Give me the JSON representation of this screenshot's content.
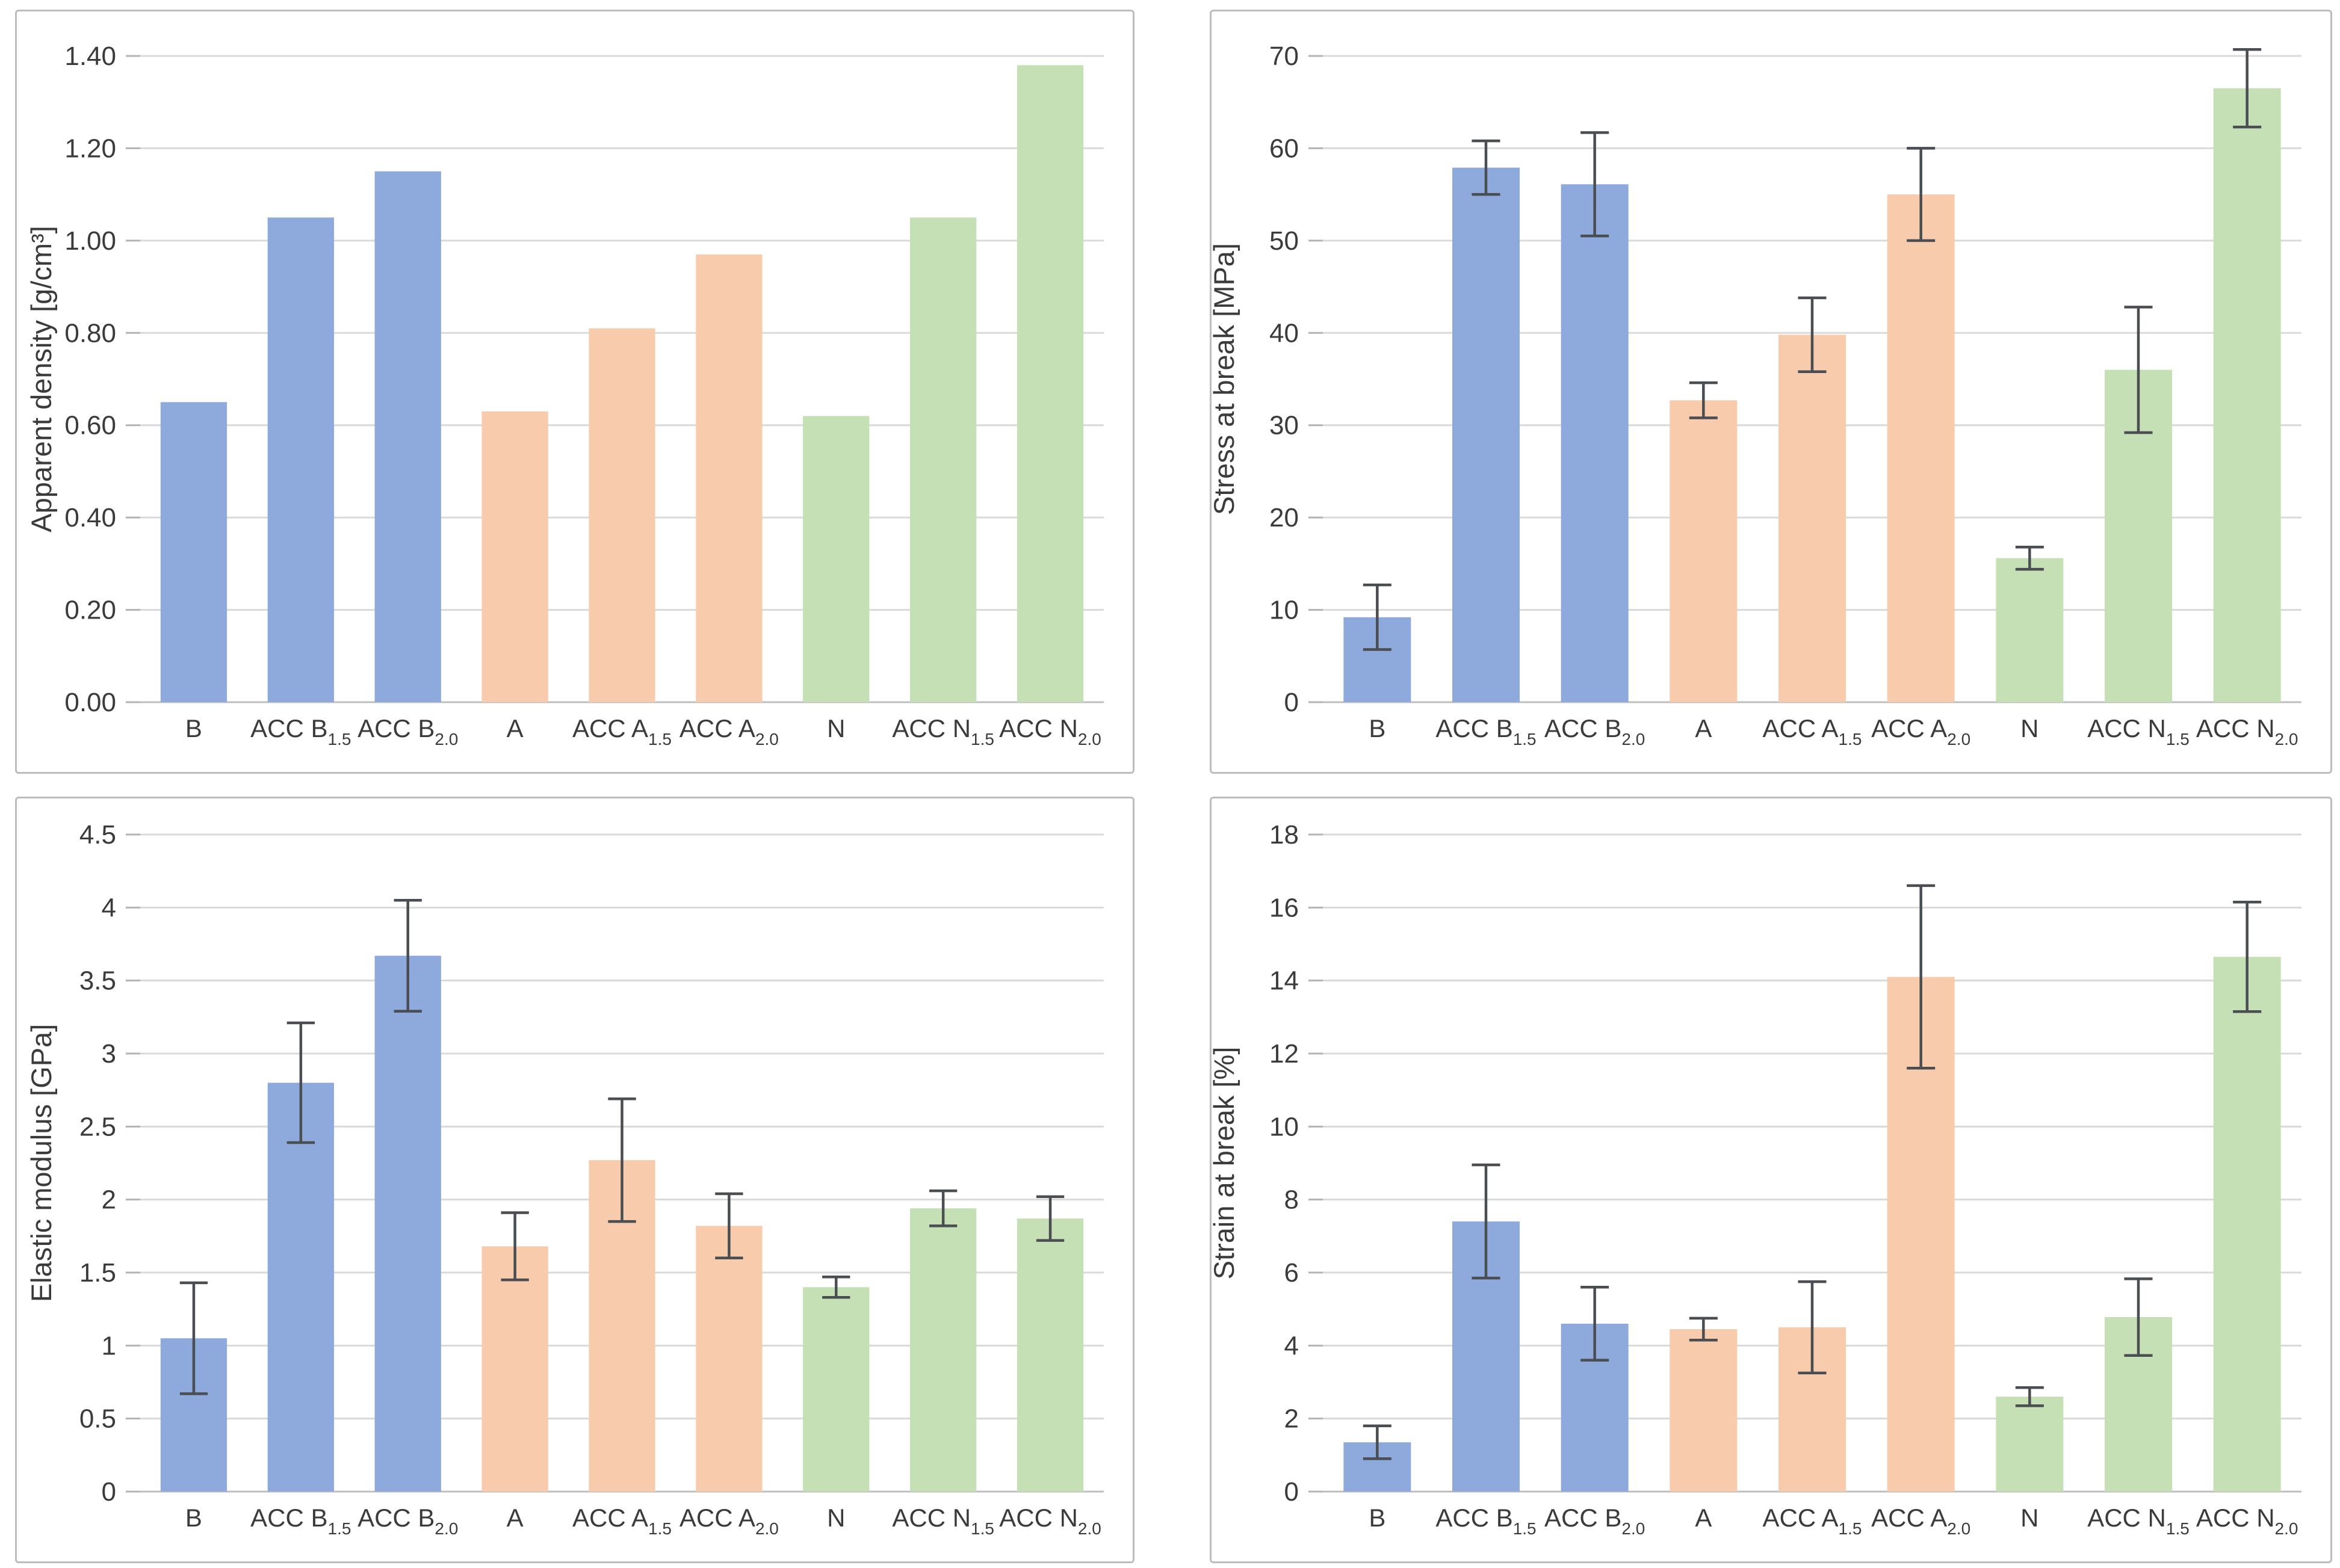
{
  "figure": {
    "description": "Four bar charts of material properties for B, A and N sample groups with ACC treatments",
    "colors": {
      "blue": "#8ea9db",
      "orange": "#f8cbad",
      "green": "#c5e0b4",
      "error_bar": "#4a4d52",
      "gridline": "#dadada",
      "axis_line": "#bfbfbf",
      "tick_mark": "#b3b3b3",
      "text": "#3b3b3b",
      "panel_border": "#bdbdbd"
    }
  },
  "chart_data": [
    {
      "type": "bar",
      "id": "apparent-density",
      "title": "",
      "xlabel": "",
      "ylabel": "Apparent density [g/cm³]",
      "ylim": [
        0,
        1.4
      ],
      "ytick_step": 0.2,
      "ytick_labels": [
        "0.00",
        "0.20",
        "0.40",
        "0.60",
        "0.80",
        "1.00",
        "1.20",
        "1.40"
      ],
      "grid": true,
      "legend": "none",
      "categories": [
        "B",
        "ACC B1.5",
        "ACC B2.0",
        "A",
        "ACC A1.5",
        "ACC A2.0",
        "N",
        "ACC N1.5",
        "ACC N2.0"
      ],
      "categories_rich": [
        {
          "base": "B",
          "sub": ""
        },
        {
          "base": "ACC B",
          "sub": "1.5"
        },
        {
          "base": "ACC B",
          "sub": "2.0"
        },
        {
          "base": "A",
          "sub": ""
        },
        {
          "base": "ACC A",
          "sub": "1.5"
        },
        {
          "base": "ACC A",
          "sub": "2.0"
        },
        {
          "base": "N",
          "sub": ""
        },
        {
          "base": "ACC N",
          "sub": "1.5"
        },
        {
          "base": "ACC N",
          "sub": "2.0"
        }
      ],
      "bar_color_keys": [
        "blue",
        "blue",
        "blue",
        "orange",
        "orange",
        "orange",
        "green",
        "green",
        "green"
      ],
      "values": [
        0.65,
        1.05,
        1.15,
        0.63,
        0.81,
        0.97,
        0.62,
        1.05,
        1.38
      ],
      "errors": null
    },
    {
      "type": "bar",
      "id": "stress-at-break",
      "title": "",
      "xlabel": "",
      "ylabel": "Stress at break [MPa]",
      "ylim": [
        0,
        70
      ],
      "ytick_step": 10,
      "ytick_labels": [
        "0",
        "10",
        "20",
        "30",
        "40",
        "50",
        "60",
        "70"
      ],
      "grid": true,
      "legend": "none",
      "categories": [
        "B",
        "ACC B1.5",
        "ACC B2.0",
        "A",
        "ACC A1.5",
        "ACC A2.0",
        "N",
        "ACC N1.5",
        "ACC N2.0"
      ],
      "categories_rich": [
        {
          "base": "B",
          "sub": ""
        },
        {
          "base": "ACC B",
          "sub": "1.5"
        },
        {
          "base": "ACC B",
          "sub": "2.0"
        },
        {
          "base": "A",
          "sub": ""
        },
        {
          "base": "ACC A",
          "sub": "1.5"
        },
        {
          "base": "ACC A",
          "sub": "2.0"
        },
        {
          "base": "N",
          "sub": ""
        },
        {
          "base": "ACC N",
          "sub": "1.5"
        },
        {
          "base": "ACC N",
          "sub": "2.0"
        }
      ],
      "bar_color_keys": [
        "blue",
        "blue",
        "blue",
        "orange",
        "orange",
        "orange",
        "green",
        "green",
        "green"
      ],
      "values": [
        9.2,
        57.9,
        56.1,
        32.7,
        39.8,
        55.0,
        15.6,
        36.0,
        66.5
      ],
      "errors": [
        3.5,
        2.9,
        5.6,
        1.9,
        4.0,
        5.0,
        1.2,
        6.8,
        4.2
      ]
    },
    {
      "type": "bar",
      "id": "elastic-modulus",
      "title": "",
      "xlabel": "",
      "ylabel": "Elastic modulus [GPa]",
      "ylim": [
        0,
        4.5
      ],
      "ytick_step": 0.5,
      "ytick_labels": [
        "0",
        "0.5",
        "1",
        "1.5",
        "2",
        "2.5",
        "3",
        "3.5",
        "4",
        "4.5"
      ],
      "grid": true,
      "legend": "none",
      "categories": [
        "B",
        "ACC B1.5",
        "ACC B2.0",
        "A",
        "ACC A1.5",
        "ACC A2.0",
        "N",
        "ACC N1.5",
        "ACC N2.0"
      ],
      "categories_rich": [
        {
          "base": "B",
          "sub": ""
        },
        {
          "base": "ACC B",
          "sub": "1.5"
        },
        {
          "base": "ACC B",
          "sub": "2.0"
        },
        {
          "base": "A",
          "sub": ""
        },
        {
          "base": "ACC A",
          "sub": "1.5"
        },
        {
          "base": "ACC A",
          "sub": "2.0"
        },
        {
          "base": "N",
          "sub": ""
        },
        {
          "base": "ACC N",
          "sub": "1.5"
        },
        {
          "base": "ACC N",
          "sub": "2.0"
        }
      ],
      "bar_color_keys": [
        "blue",
        "blue",
        "blue",
        "orange",
        "orange",
        "orange",
        "green",
        "green",
        "green"
      ],
      "values": [
        1.05,
        2.8,
        3.67,
        1.68,
        2.27,
        1.82,
        1.4,
        1.94,
        1.87
      ],
      "errors": [
        0.38,
        0.41,
        0.38,
        0.23,
        0.42,
        0.22,
        0.07,
        0.12,
        0.15
      ]
    },
    {
      "type": "bar",
      "id": "strain-at-break",
      "title": "",
      "xlabel": "",
      "ylabel": "Strain at break [%]",
      "ylim": [
        0,
        18
      ],
      "ytick_step": 2,
      "ytick_labels": [
        "0",
        "2",
        "4",
        "6",
        "8",
        "10",
        "12",
        "14",
        "16",
        "18"
      ],
      "grid": true,
      "legend": "none",
      "categories": [
        "B",
        "ACC B1.5",
        "ACC B2.0",
        "A",
        "ACC A1.5",
        "ACC A2.0",
        "N",
        "ACC N1.5",
        "ACC N2.0"
      ],
      "categories_rich": [
        {
          "base": "B",
          "sub": ""
        },
        {
          "base": "ACC B",
          "sub": "1.5"
        },
        {
          "base": "ACC B",
          "sub": "2.0"
        },
        {
          "base": "A",
          "sub": ""
        },
        {
          "base": "ACC A",
          "sub": "1.5"
        },
        {
          "base": "ACC A",
          "sub": "2.0"
        },
        {
          "base": "N",
          "sub": ""
        },
        {
          "base": "ACC N",
          "sub": "1.5"
        },
        {
          "base": "ACC N",
          "sub": "2.0"
        }
      ],
      "bar_color_keys": [
        "blue",
        "blue",
        "blue",
        "orange",
        "orange",
        "orange",
        "green",
        "green",
        "green"
      ],
      "values": [
        1.35,
        7.4,
        4.6,
        4.45,
        4.5,
        14.1,
        2.6,
        4.78,
        14.65
      ],
      "errors": [
        0.45,
        1.55,
        1.0,
        0.3,
        1.25,
        2.5,
        0.25,
        1.05,
        1.5
      ]
    }
  ]
}
